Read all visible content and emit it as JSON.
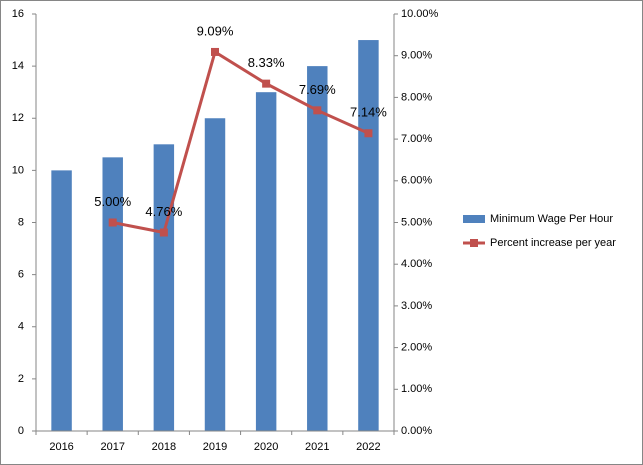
{
  "chart_data": {
    "type": "bar",
    "categories": [
      "2016",
      "2017",
      "2018",
      "2019",
      "2020",
      "2021",
      "2022"
    ],
    "series": [
      {
        "name": "Minimum Wage Per Hour",
        "type": "bar",
        "color": "#4f81bd",
        "values": [
          10,
          10.5,
          11,
          12,
          13,
          14,
          15
        ]
      },
      {
        "name": "Percent increase per year",
        "type": "line",
        "axis": "y2",
        "color": "#c0504d",
        "values": [
          null,
          5.0,
          4.76,
          9.09,
          8.33,
          7.69,
          7.14
        ],
        "value_labels": [
          null,
          "5.00%",
          "4.76%",
          "9.09%",
          "8.33%",
          "7.69%",
          "7.14%"
        ]
      }
    ],
    "ylim": [
      0,
      16
    ],
    "yticks": [
      0,
      2,
      4,
      6,
      8,
      10,
      12,
      14,
      16
    ],
    "y2lim": [
      0,
      10
    ],
    "y2ticks": [
      {
        "value": 0,
        "label": "0.00%"
      },
      {
        "value": 1,
        "label": "1.00%"
      },
      {
        "value": 2,
        "label": "2.00%"
      },
      {
        "value": 3,
        "label": "3.00%"
      },
      {
        "value": 4,
        "label": "4.00%"
      },
      {
        "value": 5,
        "label": "5.00%"
      },
      {
        "value": 6,
        "label": "6.00%"
      },
      {
        "value": 7,
        "label": "7.00%"
      },
      {
        "value": 8,
        "label": "8.00%"
      },
      {
        "value": 9,
        "label": "9.00%"
      },
      {
        "value": 10,
        "label": "10.00%"
      }
    ],
    "legend": "right",
    "grid": false
  }
}
